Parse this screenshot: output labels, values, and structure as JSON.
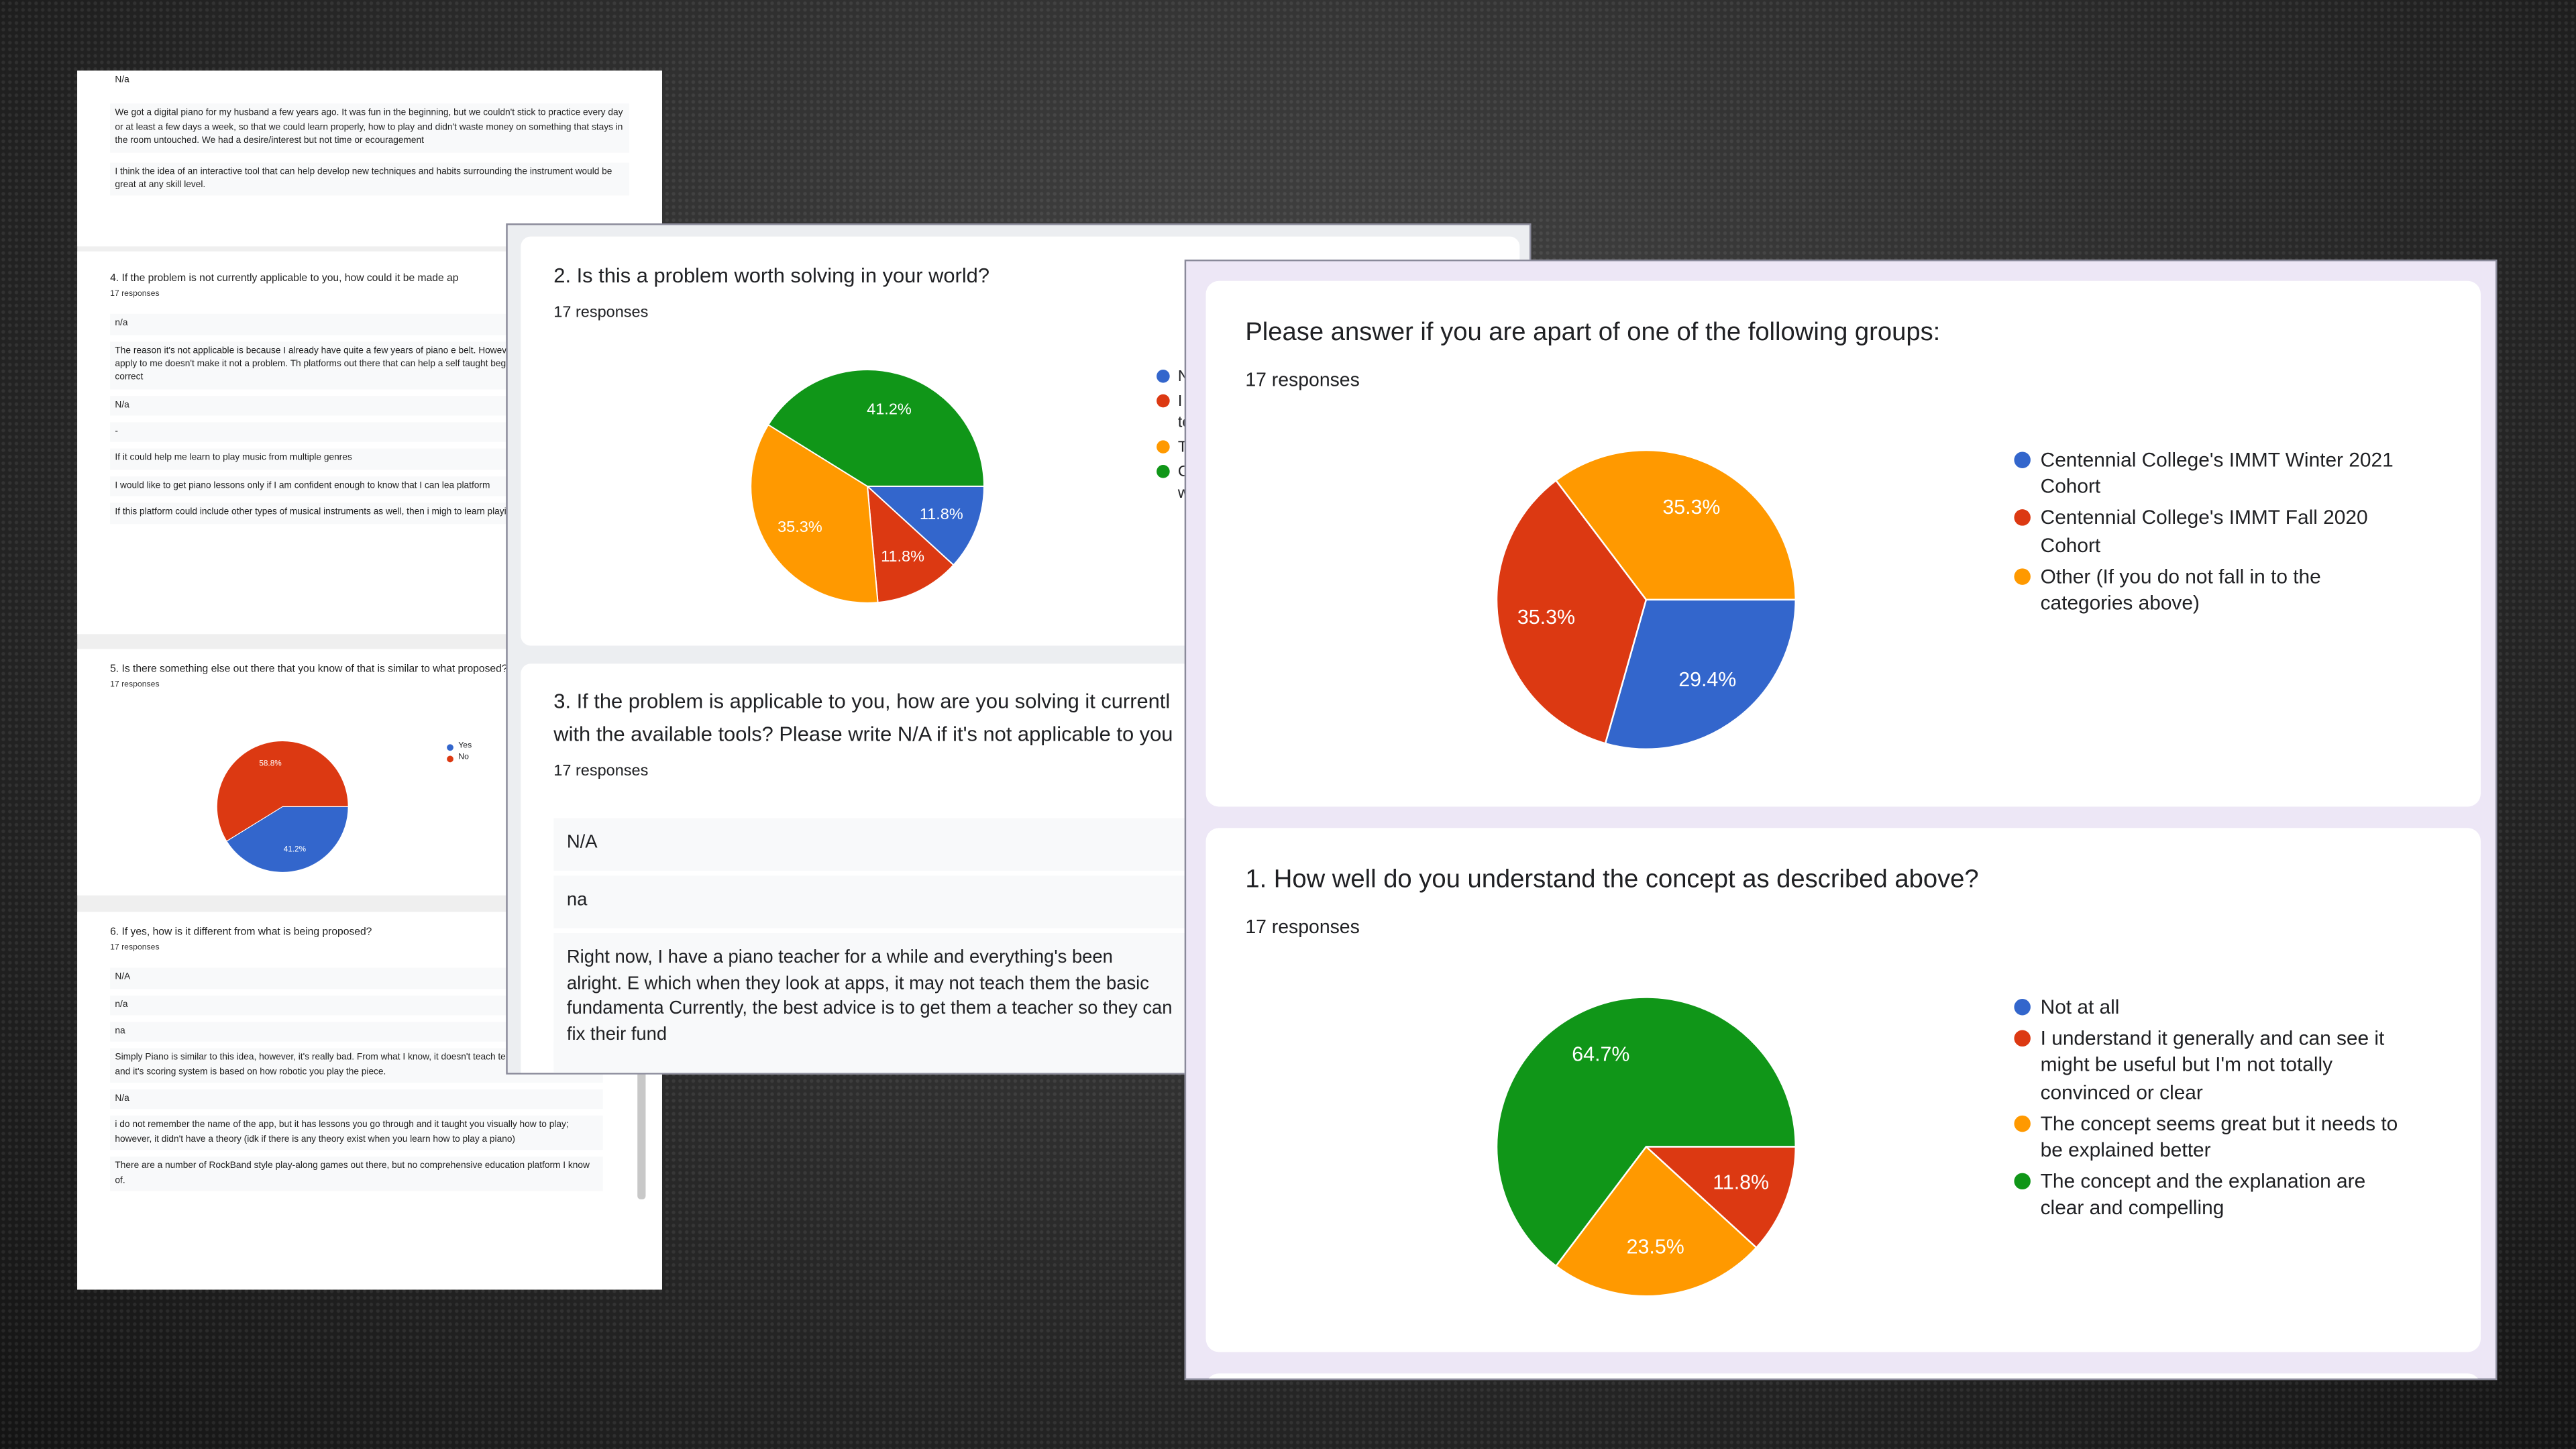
{
  "left_panel": {
    "top_answers": [
      "N/a",
      "We got a digital piano for my husband a few years ago. It was fun in the beginning, but we couldn't stick to practice every day or at least a few days a week, so that we could learn properly, how to play and didn't waste money on something that stays in the room untouched. We had a desire/interest but not time or ecouragement",
      "I think the idea of an interactive tool that can help develop new techniques and habits surrounding the instrument would be great at any skill level."
    ],
    "q4": {
      "title": "4. If the problem is not currently applicable to you, how could it be made ap",
      "responses": "17 responses",
      "answers": [
        "n/a",
        "The reason it's not applicable is because I already have quite a few years of piano e belt. However, just because it doesn't apply to me doesn't make it not a problem. Th platforms out there that can help a self taught beginner learn notes and the correct",
        "N/a",
        "-",
        "If it could help me learn to play music from multiple genres",
        "I would like to get piano lessons only if I am confident enough to know that I can lea platform",
        "If this platform could include other types of musical instruments as well, then i migh to learn playing violin/guitar"
      ]
    },
    "q5": {
      "title": "5. Is there something else out there that you know of that is similar to what proposed?",
      "responses": "17 responses",
      "chart": {
        "type": "pie",
        "categories": [
          "Yes",
          "No"
        ],
        "values": [
          41.2,
          58.8
        ],
        "value_labels": [
          "41.2%",
          "58.8%"
        ],
        "colors": [
          "#3366cc",
          "#dc3912"
        ]
      }
    },
    "q6": {
      "title": "6. If yes, how is it different from what is being proposed?",
      "responses": "17 responses",
      "answers": [
        "N/A",
        "n/a",
        "na",
        "Simply Piano is similar to this idea, however, it's really bad. From what I know, it doesn't teach technique or phrasing, and it's scoring system is based on how robotic you play the piece.",
        "N/a",
        "i do not remember the name of the app, but it has lessons you go through and it taught you visually how to play; however, it didn't have a theory (idk if there is any theory exist when you learn how to play a piano)",
        "There are a number of RockBand style play-along games out there, but no comprehensive education platform I know of."
      ]
    }
  },
  "middle_panel": {
    "q2": {
      "title": "2. Is this a problem worth solving in your world?",
      "responses": "17 responses",
      "chart": {
        "type": "pie",
        "categories": [
          "N",
          "I\nto",
          "T",
          "C\nw"
        ],
        "values": [
          11.8,
          11.8,
          35.3,
          41.2
        ],
        "value_labels": [
          "11.8%",
          "11.8%",
          "35.3%",
          "41.2%"
        ],
        "colors": [
          "#3366cc",
          "#dc3912",
          "#ff9900",
          "#109618"
        ]
      }
    },
    "q3": {
      "title": "3. If the problem is applicable to you, how are you solving it currentl with the available tools? Please write N/A if it's not applicable to you",
      "responses": "17 responses",
      "answers": [
        "N/A",
        "na",
        "Right now, I have a piano teacher for a while and everything's been alright. E which when they look at apps, it may not teach them the basic fundamenta Currently, the best advice is to get them a teacher so they can fix their fund"
      ]
    }
  },
  "right_panel": {
    "groups": {
      "title": "Please answer if you are apart of one of the following groups:",
      "responses": "17 responses",
      "chart": {
        "type": "pie",
        "categories": [
          "Centennial College's IMMT Winter 2021 Cohort",
          "Centennial College's IMMT Fall 2020 Cohort",
          "Other (If you do not fall in to the categories above)"
        ],
        "values": [
          29.4,
          35.3,
          35.3
        ],
        "value_labels": [
          "29.4%",
          "35.3%",
          "35.3%"
        ],
        "colors": [
          "#3366cc",
          "#dc3912",
          "#ff9900"
        ]
      }
    },
    "q1": {
      "title": "1. How well do you understand the concept as described above?",
      "responses": "17 responses",
      "chart": {
        "type": "pie",
        "categories": [
          "Not at all",
          "I understand it generally and can see it might be useful but I'm not totally convinced or clear",
          "The concept seems great but it needs to be explained better",
          "The concept and the explanation are clear and compelling"
        ],
        "values": [
          0,
          11.8,
          23.5,
          64.7
        ],
        "value_labels": [
          null,
          "11.8%",
          "23.5%",
          "64.7%"
        ],
        "colors": [
          "#3366cc",
          "#dc3912",
          "#ff9900",
          "#109618"
        ]
      }
    }
  }
}
